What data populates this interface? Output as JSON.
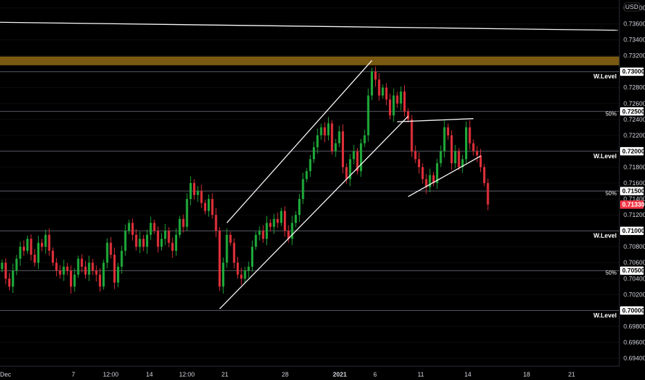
{
  "chart_data": {
    "type": "candlestick",
    "currency": "USD",
    "y_axis_ticks": [
      0.738,
      0.736,
      0.734,
      0.732,
      0.728,
      0.726,
      0.724,
      0.722,
      0.718,
      0.716,
      0.714,
      0.712,
      0.708,
      0.706,
      0.704,
      0.702,
      0.698,
      0.696,
      0.694
    ],
    "ylim": [
      0.693,
      0.739
    ],
    "x_axis_labels": [
      "Dec",
      "7",
      "12:00",
      "14",
      "12:00",
      "21",
      "28",
      "2021",
      "6",
      "11",
      "14",
      "18",
      "21"
    ],
    "horizontal_levels": [
      {
        "price": 0.73,
        "tag": "0.73000",
        "label": "W.Level"
      },
      {
        "price": 0.725,
        "tag": "0.72500",
        "label": "50%"
      },
      {
        "price": 0.72,
        "tag": "0.72000",
        "label": "W.Level"
      },
      {
        "price": 0.715,
        "tag": "0.71500",
        "label": "50%"
      },
      {
        "price": 0.71,
        "tag": "0.71000",
        "label": "W.Level"
      },
      {
        "price": 0.705,
        "tag": "0.70500",
        "label": "50%"
      },
      {
        "price": 0.7,
        "tag": "0.70000",
        "label": "W.Level"
      }
    ],
    "resistance_zone": {
      "from": 0.7308,
      "to": 0.7319
    },
    "last_price": {
      "value": 0.7133,
      "tag": "0.71330"
    },
    "trendlines": [
      {
        "name": "upper-line",
        "p1": {
          "i": 0,
          "y": 0.7362
        },
        "p2": {
          "i": 160,
          "y": 0.7352
        }
      },
      {
        "name": "channel-top",
        "p1": {
          "i": 62,
          "y": 0.711
        },
        "p2": {
          "i": 102,
          "y": 0.7314
        }
      },
      {
        "name": "channel-bottom",
        "p1": {
          "i": 60,
          "y": 0.7002
        },
        "p2": {
          "i": 112,
          "y": 0.7244
        }
      },
      {
        "name": "wedge-top",
        "p1": {
          "i": 109,
          "y": 0.7237
        },
        "p2": {
          "i": 130,
          "y": 0.7241
        }
      },
      {
        "name": "wedge-bottom",
        "p1": {
          "i": 112,
          "y": 0.7143
        },
        "p2": {
          "i": 132,
          "y": 0.7194
        }
      }
    ],
    "closes": [
      0.706,
      0.704,
      0.703,
      0.705,
      0.7065,
      0.708,
      0.7075,
      0.709,
      0.707,
      0.706,
      0.7085,
      0.708,
      0.7095,
      0.7075,
      0.706,
      0.705,
      0.7045,
      0.7055,
      0.705,
      0.703,
      0.7045,
      0.7065,
      0.7055,
      0.7045,
      0.706,
      0.705,
      0.7045,
      0.703,
      0.706,
      0.7085,
      0.707,
      0.7035,
      0.7055,
      0.7075,
      0.71,
      0.711,
      0.7095,
      0.708,
      0.709,
      0.708,
      0.7095,
      0.711,
      0.71,
      0.708,
      0.709,
      0.71,
      0.7085,
      0.7075,
      0.7095,
      0.7115,
      0.7105,
      0.714,
      0.716,
      0.7145,
      0.715,
      0.7135,
      0.7125,
      0.714,
      0.712,
      0.71,
      0.703,
      0.706,
      0.7095,
      0.7085,
      0.706,
      0.7045,
      0.704,
      0.705,
      0.7055,
      0.708,
      0.7095,
      0.71,
      0.709,
      0.711,
      0.7105,
      0.7115,
      0.711,
      0.7125,
      0.71,
      0.709,
      0.711,
      0.712,
      0.714,
      0.7165,
      0.7175,
      0.719,
      0.7205,
      0.722,
      0.723,
      0.722,
      0.7235,
      0.72,
      0.721,
      0.7225,
      0.718,
      0.7165,
      0.719,
      0.72,
      0.7175,
      0.721,
      0.722,
      0.727,
      0.73,
      0.729,
      0.727,
      0.728,
      0.7265,
      0.7245,
      0.727,
      0.726,
      0.7275,
      0.725,
      0.724,
      0.72,
      0.719,
      0.718,
      0.7165,
      0.7155,
      0.717,
      0.716,
      0.7185,
      0.72,
      0.723,
      0.722,
      0.7185,
      0.72,
      0.718,
      0.719,
      0.723,
      0.721,
      0.72,
      0.7195,
      0.718,
      0.716,
      0.7133
    ],
    "visible_candle_slots": 170
  }
}
